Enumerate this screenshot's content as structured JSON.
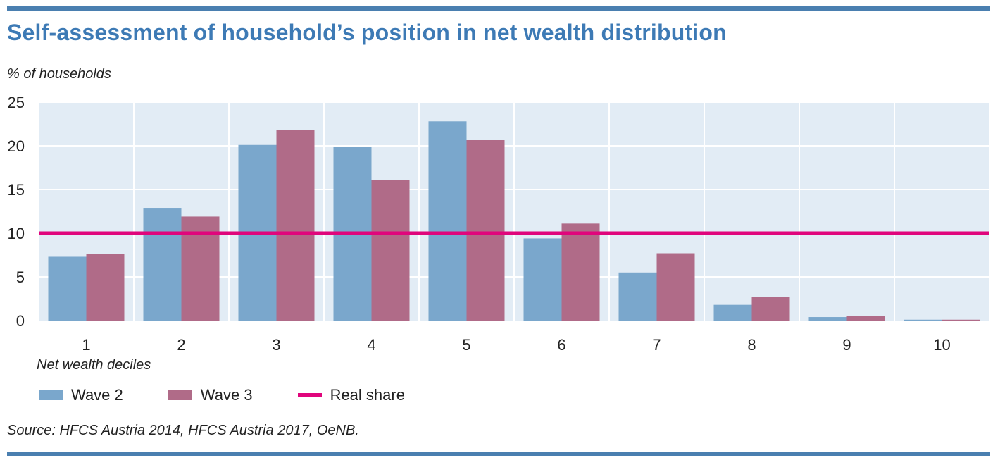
{
  "title": "Self-assessment of household’s position in net wealth distribution",
  "source": "Source: HFCS Austria 2014, HFCS Austria 2017, OeNB.",
  "colors": {
    "wave2": "#7aa7cc",
    "wave3": "#b06b88",
    "real_share": "#e0057c",
    "plot_bg": "#e2ecf5",
    "grid": "#ffffff",
    "rule": "#4a7fb0",
    "title": "#3d7ab5"
  },
  "chart_data": {
    "type": "bar",
    "ylabel": "% of households",
    "xlabel": "Net wealth deciles",
    "ylim": [
      0,
      25
    ],
    "yticks": [
      "0",
      "5",
      "10",
      "15",
      "20",
      "25"
    ],
    "categories": [
      "1",
      "2",
      "3",
      "4",
      "5",
      "6",
      "7",
      "8",
      "9",
      "10"
    ],
    "series": [
      {
        "name": "Wave 2",
        "values": [
          7.3,
          12.9,
          20.1,
          19.9,
          22.8,
          9.4,
          5.5,
          1.8,
          0.4,
          0.1
        ]
      },
      {
        "name": "Wave 3",
        "values": [
          7.6,
          11.9,
          21.8,
          16.1,
          20.7,
          11.1,
          7.7,
          2.7,
          0.5,
          0.1
        ]
      }
    ],
    "reference_line": {
      "name": "Real share",
      "value": 10
    },
    "grid": true,
    "legend_position": "bottom-left"
  }
}
